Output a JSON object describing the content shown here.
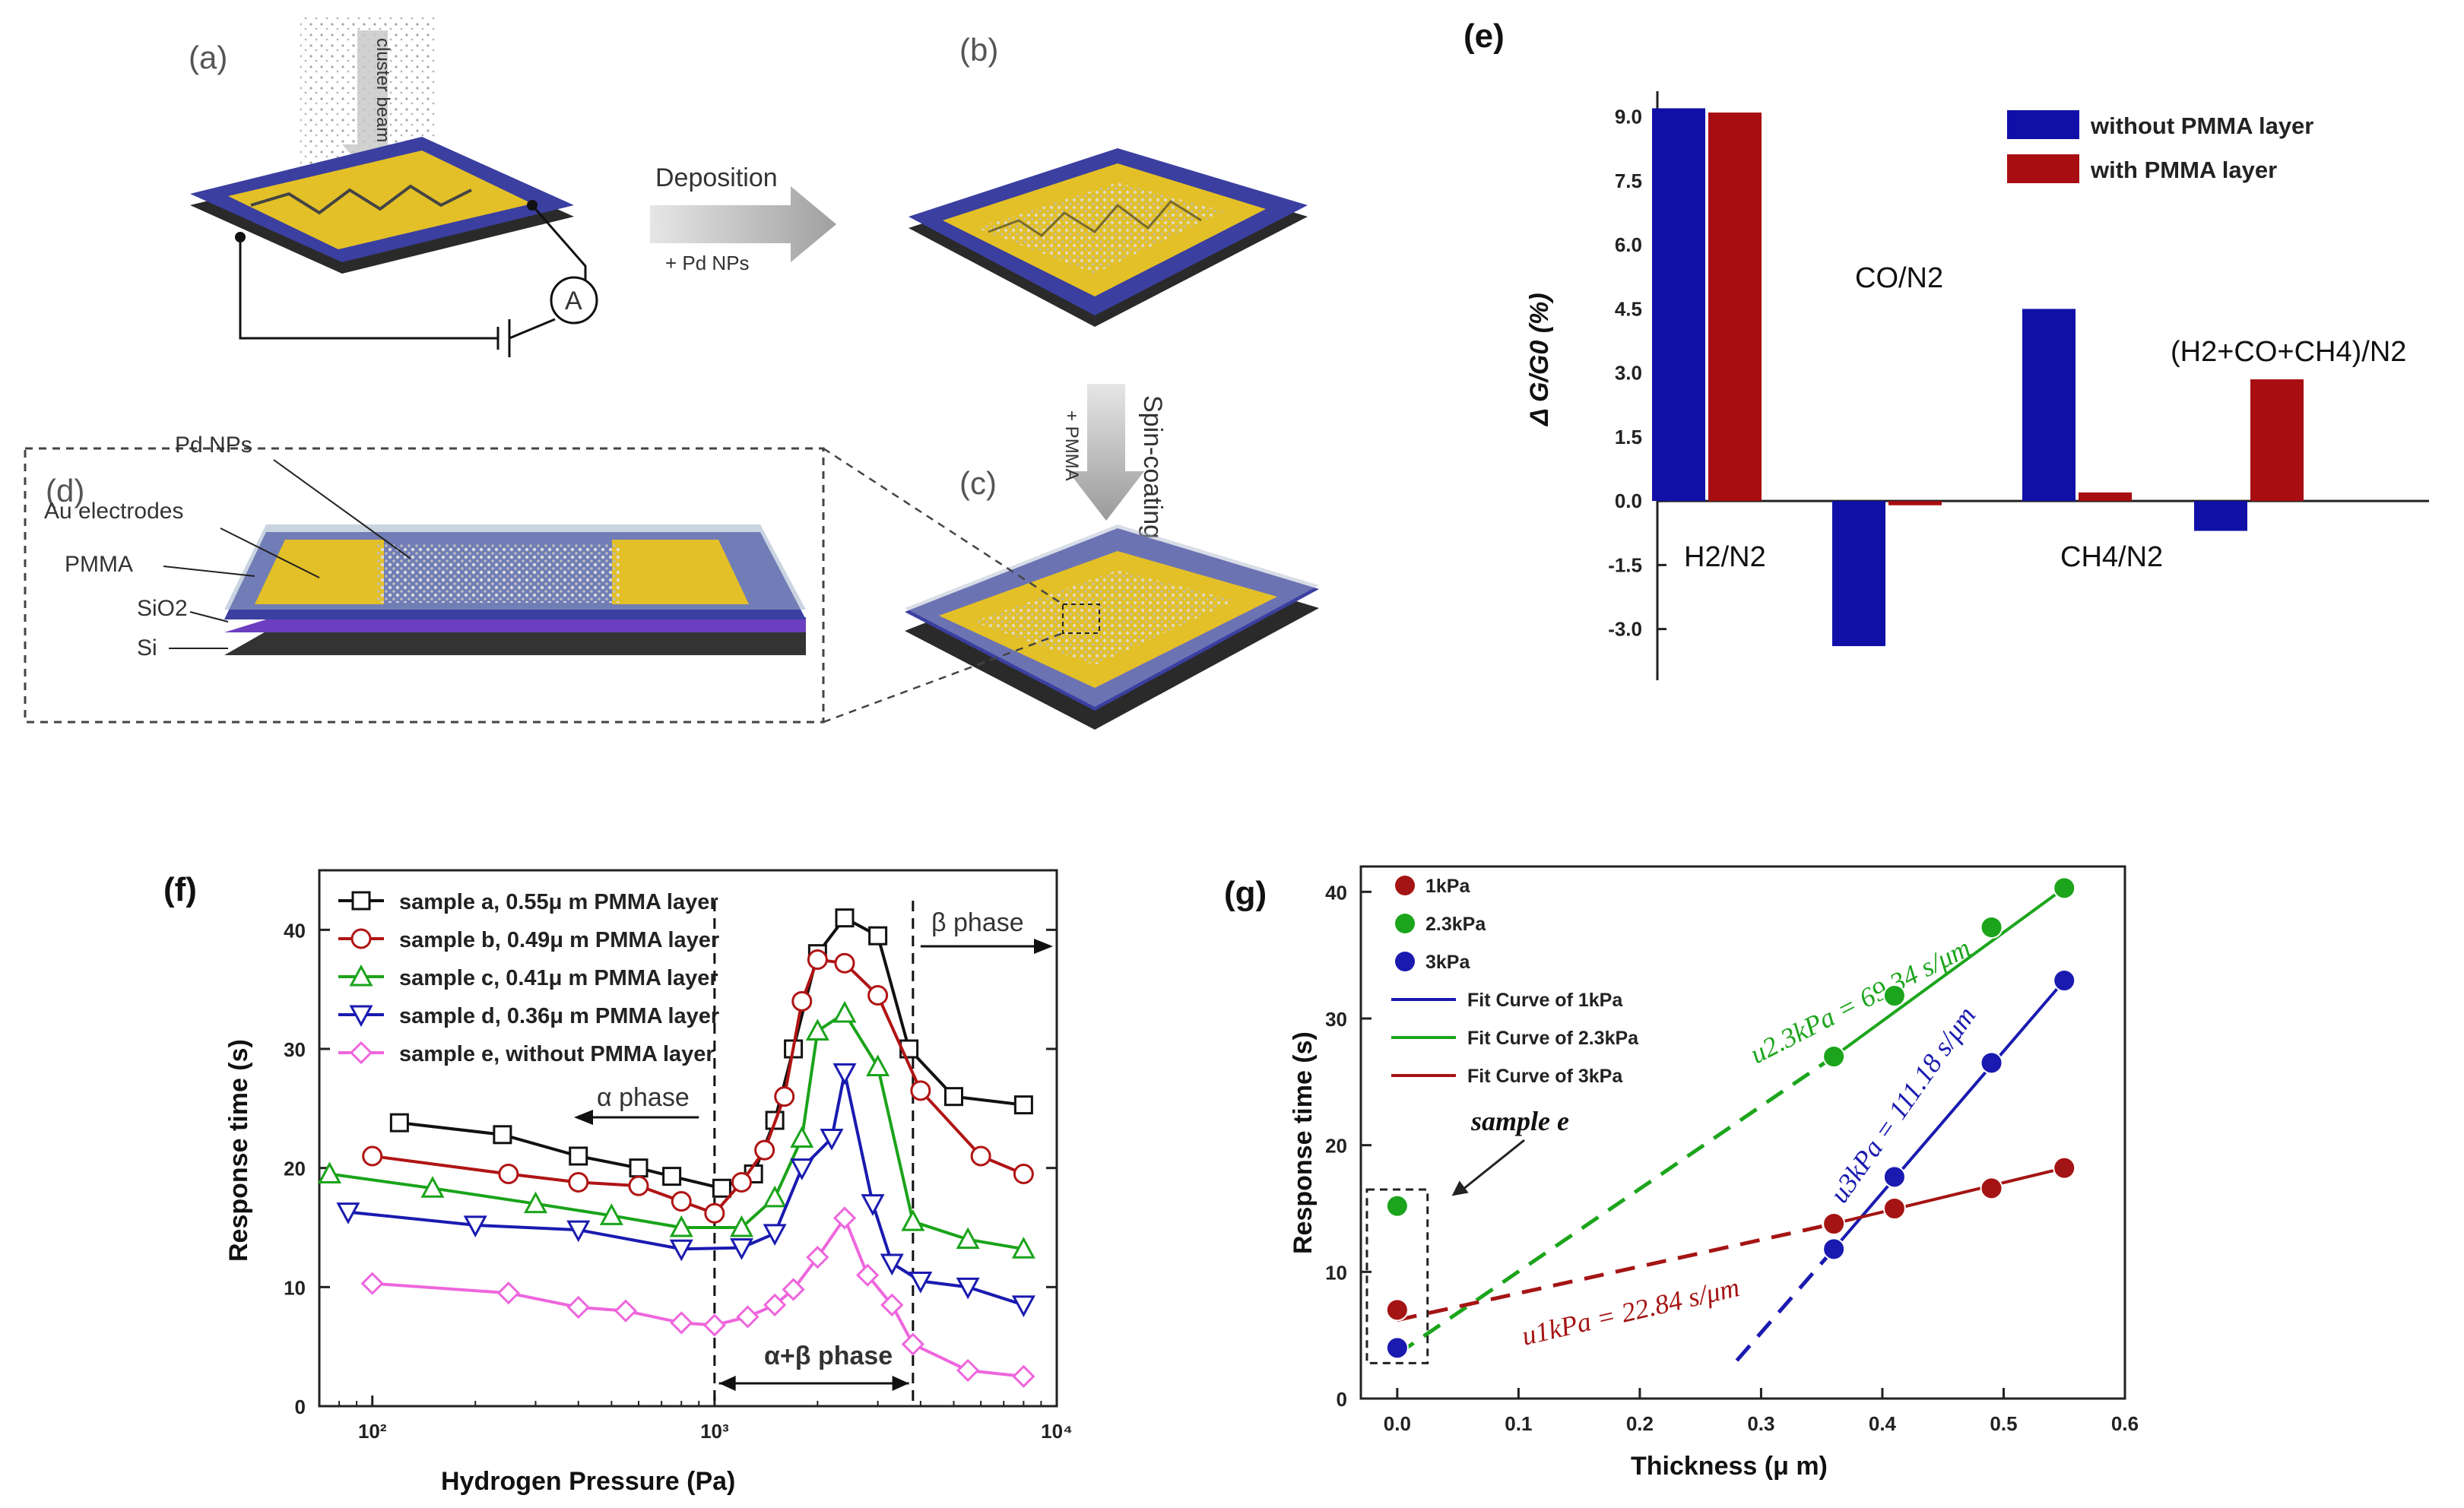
{
  "schematic": {
    "panel_a": "(a)",
    "panel_b": "(b)",
    "panel_c": "(c)",
    "panel_d": "(d)",
    "cluster_beam": "cluster beam",
    "deposition": "Deposition",
    "pd_nps_plus": "+ Pd NPs",
    "spin_coating": "Spin-coating",
    "pmma_plus": "+ PMMA",
    "ammeter": "A",
    "d_labels": {
      "pd_nps": "Pd NPs",
      "au_electrodes": "Au electrodes",
      "pmma": "PMMA",
      "sio2": "SiO2",
      "si": "Si"
    },
    "colors": {
      "substrate": "#3b3fa0",
      "electrode": "#e3c027",
      "base": "#2a2a2a"
    }
  },
  "chart_data": [
    {
      "panel": "(e)",
      "type": "bar",
      "categories": [
        "H2/N2",
        "CO/N2",
        "CH4/N2",
        "(H2+CO+CH4)/N2"
      ],
      "series": [
        {
          "name": "without PMMA layer",
          "color": "#1010a8",
          "values": [
            9.2,
            -3.4,
            4.5,
            -0.7
          ]
        },
        {
          "name": "with PMMA layer",
          "color": "#a80d12",
          "values": [
            9.1,
            -0.1,
            0.2,
            2.85
          ]
        }
      ],
      "ylabel": "Δ G/G0 (%)",
      "ylim": [
        -4.2,
        9.6
      ],
      "yticks": [
        "9.0",
        "7.5",
        "6.0",
        "4.5",
        "3.0",
        "1.5",
        "0.0",
        "-1.5",
        "-3.0"
      ],
      "ytick_values": [
        9.0,
        7.5,
        6.0,
        4.5,
        3.0,
        1.5,
        0.0,
        -1.5,
        -3.0
      ],
      "legend": "top-right"
    },
    {
      "panel": "(f)",
      "type": "line",
      "xscale": "log",
      "xlim": [
        70,
        10000
      ],
      "ylim": [
        0,
        45
      ],
      "xlabel": "Hydrogen Pressure (Pa)",
      "ylabel": "Response time (s)",
      "xtick_labels": [
        "10²",
        "10³",
        "10⁴"
      ],
      "xtick_values": [
        100,
        1000,
        10000
      ],
      "yticks": [
        "0",
        "10",
        "20",
        "30",
        "40"
      ],
      "ytick_values": [
        0,
        10,
        20,
        30,
        40
      ],
      "annotations": {
        "alpha": "α phase",
        "beta": "β phase",
        "alpha_beta": "α+β phase"
      },
      "phase_boundaries": [
        1000,
        3800
      ],
      "legend": "top-left",
      "series": [
        {
          "name": "sample a, 0.55μ m PMMA layer",
          "marker": "square",
          "color": "#111111",
          "x": [
            120,
            240,
            400,
            600,
            750,
            1050,
            1300,
            1500,
            1700,
            2000,
            2400,
            3000,
            3700,
            5000,
            8000
          ],
          "y": [
            23.8,
            22.8,
            21.0,
            20.0,
            19.3,
            18.3,
            19.5,
            24.0,
            30.0,
            38.0,
            41.0,
            39.5,
            30.0,
            26.0,
            25.3
          ]
        },
        {
          "name": "sample b, 0.49μ m PMMA layer",
          "marker": "circle",
          "color": "#b01414",
          "x": [
            100,
            250,
            400,
            600,
            800,
            1000,
            1200,
            1400,
            1600,
            1800,
            2000,
            2400,
            3000,
            4000,
            6000,
            8000
          ],
          "y": [
            21.0,
            19.5,
            18.8,
            18.5,
            17.2,
            16.2,
            18.8,
            21.5,
            26.0,
            34.0,
            37.5,
            37.2,
            34.5,
            26.5,
            21.0,
            19.5
          ]
        },
        {
          "name": "sample c, 0.41μ m PMMA layer",
          "marker": "triangle-up",
          "color": "#1aa31a",
          "x": [
            75,
            150,
            300,
            500,
            800,
            1200,
            1500,
            1800,
            2000,
            2400,
            3000,
            3800,
            5500,
            8000
          ],
          "y": [
            19.5,
            18.3,
            17.0,
            16.0,
            15.0,
            15.0,
            17.5,
            22.5,
            31.5,
            33.0,
            28.5,
            15.5,
            14.0,
            13.2
          ]
        },
        {
          "name": "sample d, 0.36μ m PMMA layer",
          "marker": "triangle-down",
          "color": "#1a1ab0",
          "x": [
            85,
            200,
            400,
            800,
            1200,
            1500,
            1800,
            2200,
            2400,
            2900,
            3300,
            4000,
            5500,
            8000
          ],
          "y": [
            16.3,
            15.2,
            14.8,
            13.2,
            13.3,
            14.5,
            20.0,
            22.5,
            28.0,
            17.0,
            12.0,
            10.5,
            10.0,
            8.5
          ]
        },
        {
          "name": "sample e, without PMMA layer",
          "marker": "diamond",
          "color": "#ee66dd",
          "x": [
            100,
            250,
            400,
            550,
            800,
            1000,
            1250,
            1500,
            1700,
            2000,
            2400,
            2800,
            3300,
            3800,
            5500,
            8000
          ],
          "y": [
            10.3,
            9.5,
            8.3,
            8.0,
            7.0,
            6.8,
            7.5,
            8.5,
            9.8,
            12.5,
            15.8,
            11.0,
            8.5,
            5.2,
            3.0,
            2.5
          ]
        }
      ]
    },
    {
      "panel": "(g)",
      "type": "scatter",
      "xlabel": "Thickness (μ m)",
      "ylabel": "Response time (s)",
      "xlim": [
        -0.03,
        0.6
      ],
      "ylim": [
        0,
        42
      ],
      "xticks": [
        "0.0",
        "0.1",
        "0.2",
        "0.3",
        "0.4",
        "0.5",
        "0.6"
      ],
      "xtick_values": [
        0.0,
        0.1,
        0.2,
        0.3,
        0.4,
        0.5,
        0.6
      ],
      "yticks": [
        "0",
        "10",
        "20",
        "30",
        "40"
      ],
      "ytick_values": [
        0,
        10,
        20,
        30,
        40
      ],
      "legend": "top-left",
      "legend_entries": [
        "1kPa",
        "2.3kPa",
        "3kPa",
        "Fit Curve of 1kPa",
        "Fit Curve of 2.3kPa",
        "Fit Curve of 3kPa"
      ],
      "series": [
        {
          "name": "1kPa",
          "color": "#a51414",
          "x": [
            0.0,
            0.36,
            0.41,
            0.49,
            0.55
          ],
          "y": [
            7.0,
            13.8,
            15.0,
            16.6,
            18.2
          ]
        },
        {
          "name": "2.3kPa",
          "color": "#1ca51c",
          "x": [
            0.0,
            0.36,
            0.41,
            0.49,
            0.55
          ],
          "y": [
            15.2,
            27.0,
            31.8,
            37.2,
            40.3
          ]
        },
        {
          "name": "3kPa",
          "color": "#1a1ab0",
          "x": [
            0.0,
            0.36,
            0.41,
            0.49,
            0.55
          ],
          "y": [
            4.0,
            11.8,
            17.5,
            26.5,
            33.0
          ]
        }
      ],
      "annotations": {
        "green_slope": "u2.3kPa = 69.34 s/μm",
        "blue_slope": "u3kPa = 111.18 s/μm",
        "red_slope": "u1kPa = 22.84 s/μm",
        "sample_e": "sample e"
      }
    }
  ]
}
